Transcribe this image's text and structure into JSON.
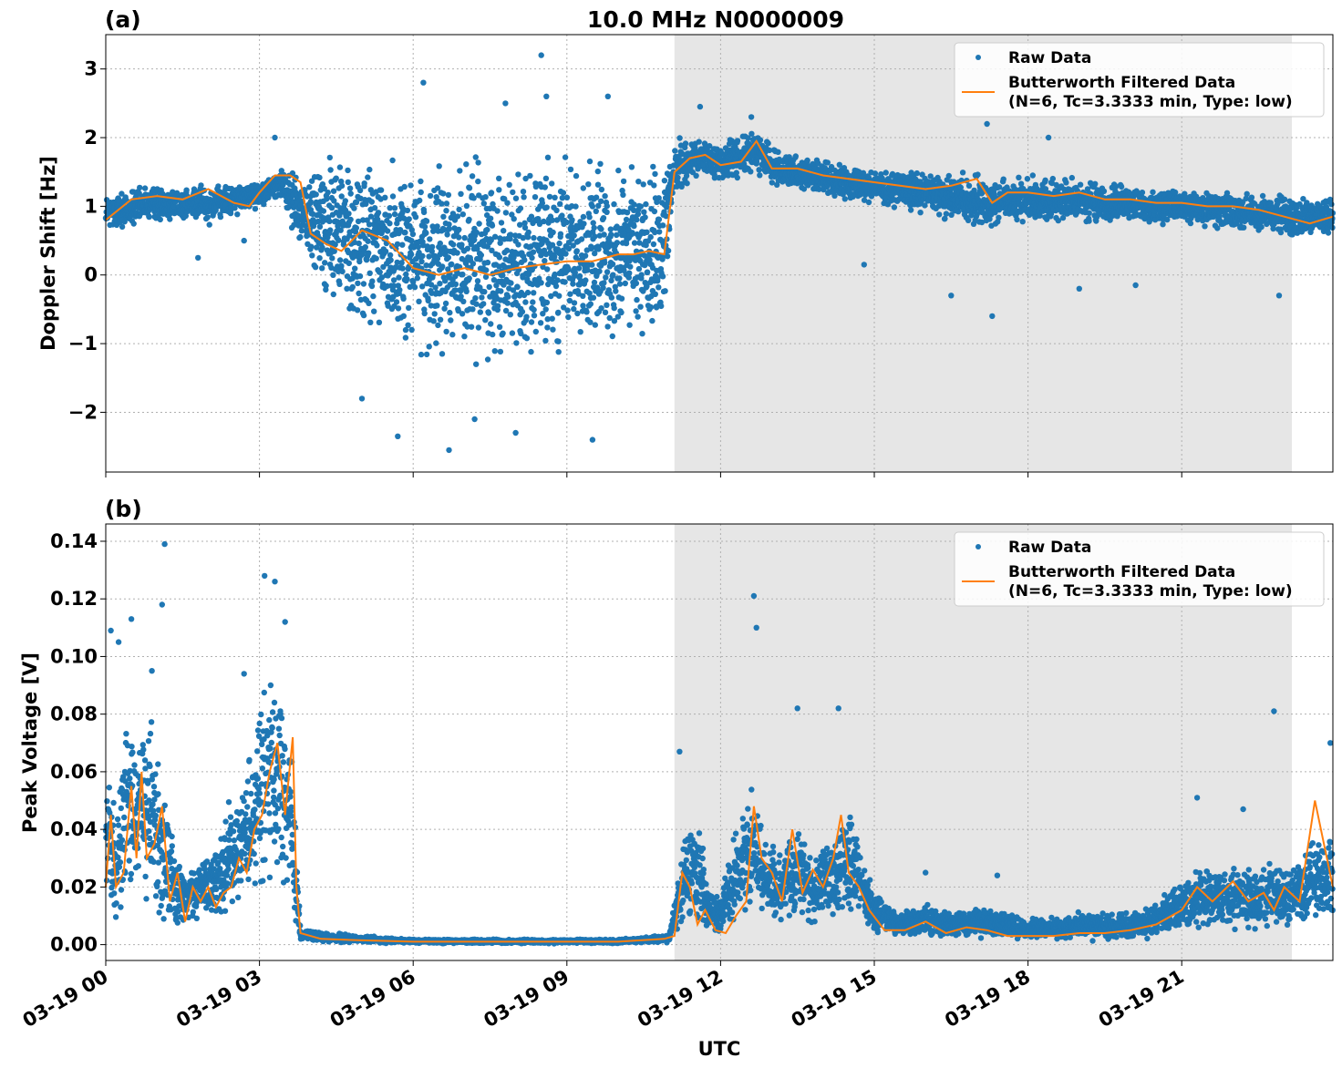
{
  "figure": {
    "title": "10.0 MHz N0000009",
    "xlabel": "UTC",
    "legend": {
      "raw_label": "Raw Data",
      "filtered_label_line1": "Butterworth Filtered Data",
      "filtered_label_line2": "(N=6, Tc=3.3333 min, Type: low)"
    },
    "colors": {
      "raw": "#1f77b4",
      "filtered": "#ff7f0e",
      "night_shading": "#e6e6e6",
      "grid": "#b0b0b0"
    },
    "x_ticks": [
      "03-19 00",
      "03-19 03",
      "03-19 06",
      "03-19 09",
      "03-19 12",
      "03-19 15",
      "03-19 18",
      "03-19 21"
    ],
    "x_tick_hours": [
      0,
      3,
      6,
      9,
      12,
      15,
      18,
      21
    ]
  },
  "chart_data": [
    {
      "type": "scatter",
      "panel": "(a)",
      "title": "10.0 MHz N0000009",
      "xlabel": "",
      "ylabel": "Doppler Shift [Hz]",
      "xlim_hours": [
        0,
        23.95
      ],
      "ylim": [
        -2.87,
        3.5
      ],
      "y_ticks": [
        3,
        2,
        1,
        0,
        -1,
        -2
      ],
      "y_tick_labels": [
        "3",
        "2",
        "1",
        "0",
        "−1",
        "−2"
      ],
      "grid": true,
      "legend_position": "top-right",
      "shaded_interval_hours": [
        11.1,
        23.15
      ],
      "series": [
        {
          "name": "Raw Data",
          "style": "markers",
          "envelope": {
            "x": [
              0,
              1,
              2,
              3,
              3.4,
              3.8,
              4.2,
              5,
              6,
              7,
              8,
              9,
              10,
              10.9,
              11.1,
              11.5,
              12,
              12.7,
              13,
              14,
              15,
              16,
              17,
              18,
              19,
              20,
              21,
              22,
              23,
              23.95
            ],
            "lower": [
              0.55,
              0.75,
              0.7,
              0.95,
              1.1,
              0.3,
              -0.5,
              -1.1,
              -1.4,
              -1.5,
              -1.5,
              -1.4,
              -1.3,
              -1.1,
              1.1,
              1.4,
              1.3,
              1.4,
              1.3,
              1.1,
              1.0,
              0.8,
              0.6,
              0.7,
              0.7,
              0.7,
              0.7,
              0.6,
              0.5,
              0.5
            ],
            "upper": [
              1.25,
              1.35,
              1.35,
              1.4,
              1.6,
              1.6,
              1.9,
              2.0,
              1.9,
              1.9,
              1.9,
              1.9,
              1.9,
              1.9,
              2.1,
              2.0,
              2.0,
              2.2,
              1.9,
              1.7,
              1.6,
              1.55,
              1.55,
              1.5,
              1.45,
              1.35,
              1.3,
              1.25,
              1.2,
              1.15
            ]
          },
          "outliers": [
            {
              "x": 3.3,
              "y": 2.0
            },
            {
              "x": 6.2,
              "y": 2.8
            },
            {
              "x": 7.8,
              "y": 2.5
            },
            {
              "x": 8.5,
              "y": 3.2
            },
            {
              "x": 8.6,
              "y": 2.6
            },
            {
              "x": 9.8,
              "y": 2.6
            },
            {
              "x": 5.7,
              "y": -2.35
            },
            {
              "x": 6.7,
              "y": -2.55
            },
            {
              "x": 8.0,
              "y": -2.3
            },
            {
              "x": 9.5,
              "y": -2.4
            },
            {
              "x": 7.2,
              "y": -2.1
            },
            {
              "x": 5.0,
              "y": -1.8
            },
            {
              "x": 1.8,
              "y": 0.25
            },
            {
              "x": 2.7,
              "y": 0.5
            },
            {
              "x": 16.5,
              "y": -0.3
            },
            {
              "x": 17.3,
              "y": -0.6
            },
            {
              "x": 17.2,
              "y": 2.2
            },
            {
              "x": 18.4,
              "y": 2.0
            },
            {
              "x": 20.1,
              "y": -0.15
            },
            {
              "x": 22.9,
              "y": -0.3
            },
            {
              "x": 11.6,
              "y": 2.45
            },
            {
              "x": 12.6,
              "y": 2.3
            },
            {
              "x": 14.8,
              "y": 0.15
            },
            {
              "x": 19.0,
              "y": -0.2
            }
          ]
        },
        {
          "name": "Butterworth Filtered Data\n(N=6, Tc=3.3333 min, Type: low)",
          "style": "line",
          "x": [
            0,
            0.5,
            1,
            1.5,
            2,
            2.5,
            2.8,
            3,
            3.3,
            3.6,
            3.8,
            4.0,
            4.3,
            4.6,
            5.0,
            5.5,
            6.0,
            6.5,
            7.0,
            7.5,
            8.0,
            8.5,
            9.0,
            9.5,
            10.0,
            10.3,
            10.6,
            10.9,
            11.1,
            11.4,
            11.7,
            12.0,
            12.4,
            12.7,
            13.0,
            13.5,
            14.0,
            14.5,
            15.0,
            15.5,
            16.0,
            16.5,
            17.0,
            17.3,
            17.6,
            18.0,
            18.5,
            19.0,
            19.5,
            20.0,
            20.5,
            21.0,
            21.5,
            22.0,
            22.5,
            23.0,
            23.5,
            23.95
          ],
          "y": [
            0.8,
            1.1,
            1.15,
            1.1,
            1.25,
            1.05,
            1.0,
            1.2,
            1.45,
            1.45,
            1.35,
            0.6,
            0.45,
            0.35,
            0.65,
            0.5,
            0.1,
            0.0,
            0.1,
            0.0,
            0.1,
            0.15,
            0.2,
            0.2,
            0.3,
            0.3,
            0.35,
            0.3,
            1.5,
            1.7,
            1.75,
            1.6,
            1.65,
            1.95,
            1.55,
            1.55,
            1.45,
            1.4,
            1.35,
            1.3,
            1.25,
            1.3,
            1.4,
            1.05,
            1.2,
            1.2,
            1.15,
            1.2,
            1.1,
            1.1,
            1.05,
            1.05,
            1.0,
            1.0,
            0.95,
            0.85,
            0.75,
            0.85
          ]
        }
      ]
    },
    {
      "type": "scatter",
      "panel": "(b)",
      "title": "",
      "xlabel": "UTC",
      "ylabel": "Peak Voltage [V]",
      "xlim_hours": [
        0,
        23.95
      ],
      "ylim": [
        -0.0055,
        0.146
      ],
      "y_ticks": [
        0.14,
        0.12,
        0.1,
        0.08,
        0.06,
        0.04,
        0.02,
        0.0
      ],
      "y_tick_labels": [
        "0.14",
        "0.12",
        "0.10",
        "0.08",
        "0.06",
        "0.04",
        "0.02",
        "0.00"
      ],
      "grid": true,
      "legend_position": "top-right",
      "shaded_interval_hours": [
        11.1,
        23.15
      ],
      "series": [
        {
          "name": "Raw Data",
          "style": "markers",
          "envelope": {
            "x": [
              0,
              0.2,
              0.4,
              0.6,
              0.8,
              1.0,
              1.2,
              1.4,
              1.6,
              1.8,
              2.0,
              2.2,
              2.4,
              2.6,
              2.8,
              3.0,
              3.2,
              3.4,
              3.6,
              3.75,
              3.8,
              4.5,
              6,
              8,
              10,
              11.0,
              11.3,
              11.5,
              11.8,
              12.0,
              12.3,
              12.6,
              12.9,
              13.2,
              13.5,
              13.8,
              14.1,
              14.4,
              14.7,
              15.0,
              15.5,
              16.0,
              16.5,
              17.0,
              17.5,
              18.0,
              18.5,
              19.0,
              19.5,
              20.0,
              20.5,
              21.0,
              21.5,
              22.0,
              22.5,
              23.0,
              23.3,
              23.6,
              23.95
            ],
            "lower": [
              0.008,
              0.006,
              0.006,
              0.008,
              0.006,
              0.004,
              0.003,
              0.002,
              0.004,
              0.005,
              0.006,
              0.005,
              0.006,
              0.008,
              0.008,
              0.01,
              0.012,
              0.012,
              0.01,
              0.002,
              0.001,
              0.0005,
              0.0003,
              0.0003,
              0.0003,
              0.0005,
              0.004,
              0.004,
              0.002,
              0.002,
              0.004,
              0.005,
              0.004,
              0.004,
              0.004,
              0.004,
              0.004,
              0.004,
              0.003,
              0.002,
              0.002,
              0.002,
              0.002,
              0.002,
              0.001,
              0.001,
              0.001,
              0.001,
              0.001,
              0.001,
              0.002,
              0.002,
              0.003,
              0.003,
              0.003,
              0.003,
              0.003,
              0.003,
              0.003
            ],
            "upper": [
              0.07,
              0.055,
              0.09,
              0.08,
              0.095,
              0.07,
              0.06,
              0.035,
              0.03,
              0.03,
              0.035,
              0.04,
              0.055,
              0.06,
              0.075,
              0.09,
              0.1,
              0.095,
              0.09,
              0.025,
              0.006,
              0.004,
              0.002,
              0.002,
              0.002,
              0.004,
              0.045,
              0.05,
              0.02,
              0.02,
              0.045,
              0.06,
              0.04,
              0.035,
              0.05,
              0.035,
              0.04,
              0.055,
              0.04,
              0.02,
              0.012,
              0.015,
              0.012,
              0.014,
              0.012,
              0.01,
              0.01,
              0.012,
              0.012,
              0.012,
              0.015,
              0.025,
              0.03,
              0.03,
              0.03,
              0.03,
              0.035,
              0.045,
              0.04
            ]
          },
          "outliers": [
            {
              "x": 1.15,
              "y": 0.139
            },
            {
              "x": 1.1,
              "y": 0.118
            },
            {
              "x": 0.5,
              "y": 0.113
            },
            {
              "x": 0.1,
              "y": 0.109
            },
            {
              "x": 0.25,
              "y": 0.105
            },
            {
              "x": 0.9,
              "y": 0.095
            },
            {
              "x": 3.1,
              "y": 0.128
            },
            {
              "x": 3.3,
              "y": 0.126
            },
            {
              "x": 2.7,
              "y": 0.094
            },
            {
              "x": 3.5,
              "y": 0.112
            },
            {
              "x": 12.65,
              "y": 0.121
            },
            {
              "x": 12.7,
              "y": 0.11
            },
            {
              "x": 13.5,
              "y": 0.082
            },
            {
              "x": 14.3,
              "y": 0.082
            },
            {
              "x": 11.2,
              "y": 0.067
            },
            {
              "x": 22.8,
              "y": 0.081
            },
            {
              "x": 23.9,
              "y": 0.07
            },
            {
              "x": 21.3,
              "y": 0.051
            },
            {
              "x": 22.2,
              "y": 0.047
            },
            {
              "x": 16.0,
              "y": 0.025
            },
            {
              "x": 17.4,
              "y": 0.024
            }
          ]
        },
        {
          "name": "Butterworth Filtered Data\n(N=6, Tc=3.3333 min, Type: low)",
          "style": "line",
          "x": [
            0,
            0.1,
            0.2,
            0.35,
            0.5,
            0.6,
            0.7,
            0.8,
            0.95,
            1.1,
            1.25,
            1.4,
            1.55,
            1.7,
            1.85,
            2.0,
            2.15,
            2.3,
            2.45,
            2.6,
            2.75,
            2.9,
            3.05,
            3.2,
            3.35,
            3.5,
            3.65,
            3.72,
            3.8,
            4.2,
            5,
            6,
            7,
            8,
            9,
            10,
            10.9,
            11.1,
            11.25,
            11.4,
            11.55,
            11.7,
            11.9,
            12.1,
            12.3,
            12.5,
            12.65,
            12.8,
            13.0,
            13.2,
            13.4,
            13.6,
            13.8,
            14.0,
            14.2,
            14.35,
            14.5,
            14.7,
            14.9,
            15.2,
            15.6,
            16.0,
            16.4,
            16.8,
            17.2,
            17.6,
            18.0,
            18.5,
            19.0,
            19.5,
            20.0,
            20.5,
            21.0,
            21.3,
            21.6,
            22.0,
            22.3,
            22.6,
            22.8,
            23.0,
            23.3,
            23.6,
            23.95
          ],
          "y": [
            0.02,
            0.045,
            0.02,
            0.025,
            0.055,
            0.03,
            0.06,
            0.03,
            0.035,
            0.048,
            0.015,
            0.025,
            0.008,
            0.02,
            0.015,
            0.02,
            0.013,
            0.018,
            0.02,
            0.03,
            0.025,
            0.04,
            0.045,
            0.06,
            0.07,
            0.045,
            0.072,
            0.02,
            0.004,
            0.002,
            0.0015,
            0.001,
            0.001,
            0.001,
            0.001,
            0.001,
            0.002,
            0.003,
            0.025,
            0.02,
            0.007,
            0.012,
            0.005,
            0.004,
            0.01,
            0.015,
            0.048,
            0.03,
            0.025,
            0.015,
            0.04,
            0.018,
            0.026,
            0.02,
            0.03,
            0.045,
            0.025,
            0.02,
            0.012,
            0.005,
            0.005,
            0.008,
            0.004,
            0.006,
            0.005,
            0.003,
            0.003,
            0.003,
            0.004,
            0.004,
            0.005,
            0.007,
            0.012,
            0.02,
            0.015,
            0.022,
            0.015,
            0.018,
            0.012,
            0.02,
            0.015,
            0.05,
            0.02
          ]
        }
      ]
    }
  ]
}
